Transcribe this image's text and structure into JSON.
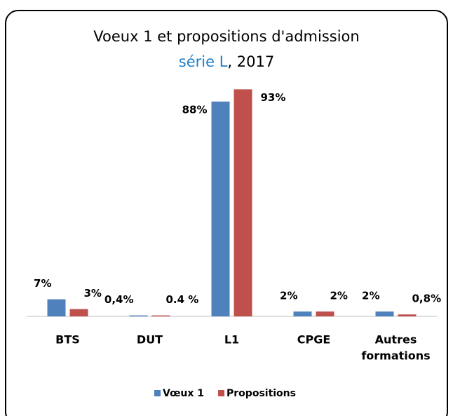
{
  "chart_data": {
    "type": "bar",
    "title": "Voeux 1 et propositions d'admission",
    "subtitle": {
      "highlight": "série L",
      "rest": ", 2017"
    },
    "categories": [
      "BTS",
      "DUT",
      "L1",
      "CPGE",
      [
        "Autres",
        "formations"
      ]
    ],
    "series": [
      {
        "name": "Vœux 1",
        "color": "#4f81bd",
        "values": [
          7,
          0.4,
          88,
          2,
          2
        ],
        "value_labels": [
          "7%",
          "0,4%",
          "88%",
          "2%",
          "2%"
        ]
      },
      {
        "name": "Propositions",
        "color": "#c0504d",
        "values": [
          3,
          0.4,
          93,
          2,
          0.8
        ],
        "value_labels": [
          "3%",
          "0.4 %",
          "93%",
          "2%",
          "0,8%"
        ]
      }
    ],
    "ylim": [
      0,
      100
    ]
  }
}
